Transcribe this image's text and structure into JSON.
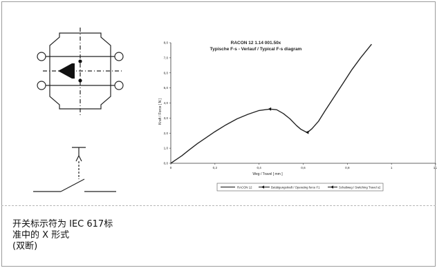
{
  "caption": {
    "line1": "开关标示符为 IEC 617标",
    "line2": "准中的 X 形式",
    "line3": "(双断)"
  },
  "chart_data": {
    "type": "line",
    "title": "RACON 12  1.14 001.50x",
    "subtitle": "Typische F-s - Verlauf / Typical F-s diagram",
    "xlabel": "Weg / Travel [ mm ]",
    "ylabel": "Kraft / Force [ N ]",
    "xlim": [
      0,
      1.2
    ],
    "ylim": [
      0,
      8.0
    ],
    "x_ticks": [
      "0",
      "0,2",
      "0,4",
      "0,6",
      "0,8",
      "1",
      "1,2"
    ],
    "y_ticks": [
      "0,0",
      "1,0",
      "2,0",
      "3,0",
      "4,0",
      "5,0",
      "6,0",
      "7,0",
      "8,0"
    ],
    "grid": false,
    "legend_position": "bottom",
    "series": [
      {
        "name": "RACON 12",
        "x": [
          0,
          0.02,
          0.05,
          0.08,
          0.12,
          0.16,
          0.2,
          0.25,
          0.3,
          0.35,
          0.4,
          0.45,
          0.48,
          0.51,
          0.54,
          0.57,
          0.59,
          0.61,
          0.62,
          0.64,
          0.67,
          0.7,
          0.74,
          0.78,
          0.82,
          0.86,
          0.91
        ],
        "y": [
          0,
          0.2,
          0.5,
          0.85,
          1.3,
          1.7,
          2.1,
          2.55,
          2.95,
          3.25,
          3.5,
          3.6,
          3.55,
          3.3,
          2.95,
          2.5,
          2.25,
          2.1,
          2.05,
          2.3,
          2.8,
          3.5,
          4.4,
          5.3,
          6.2,
          7.0,
          7.9
        ]
      }
    ],
    "markers": [
      {
        "name": "Betätigungskraft / Operating force F1",
        "x": 0.45,
        "y": 3.6
      },
      {
        "name": "Schaltweg / Switching Travel s2",
        "x": 0.62,
        "y": 2.05
      }
    ],
    "legend": [
      "RACON 12",
      "Betätigungskraft / Operating force F1",
      "Schaltweg / Switching Travel s2"
    ]
  }
}
